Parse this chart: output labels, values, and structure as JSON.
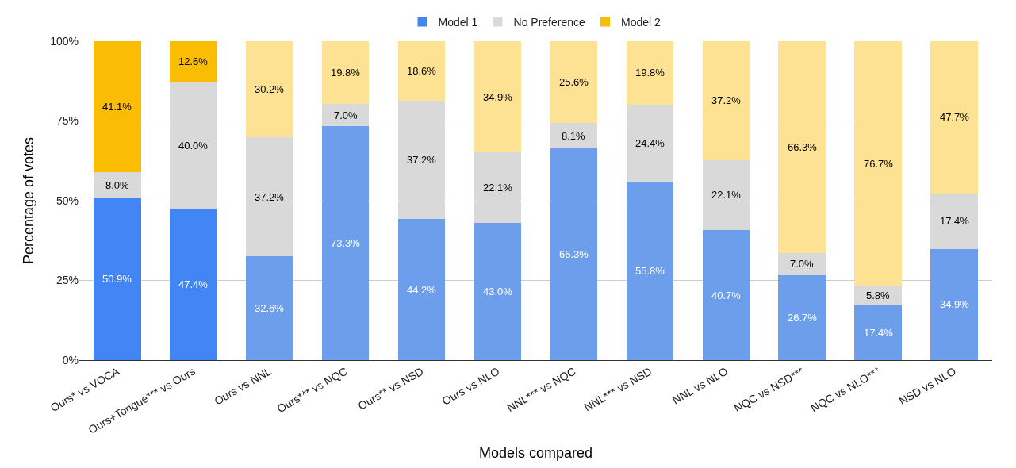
{
  "chart_data": {
    "type": "bar",
    "stacked": true,
    "xlabel": "Models compared",
    "ylabel": "Percentage of votes",
    "categories": [
      "Ours* vs VOCA",
      "Ours+Tongue*** vs Ours",
      "Ours vs NNL",
      "Ours*** vs NQC",
      "Ours** vs NSD",
      "Ours vs NLO",
      "NNL*** vs NQC",
      "NNL*** vs NSD",
      "NNL vs NLO",
      "NQC vs NSD***",
      "NQC vs NLO***",
      "NSD vs NLO"
    ],
    "series": [
      {
        "name": "Model 1",
        "colors": [
          "#4285f4",
          "#4285f4",
          "#6d9eeb",
          "#6d9eeb",
          "#6d9eeb",
          "#6d9eeb",
          "#6d9eeb",
          "#6d9eeb",
          "#6d9eeb",
          "#6d9eeb",
          "#6d9eeb",
          "#6d9eeb"
        ],
        "values": [
          50.9,
          47.4,
          32.6,
          73.3,
          44.2,
          43.0,
          66.3,
          55.8,
          40.7,
          26.7,
          17.4,
          34.9
        ],
        "value_labels": [
          "50.9%",
          "47.4%",
          "32.6%",
          "73.3%",
          "44.2%",
          "43.0%",
          "66.3%",
          "55.8%",
          "40.7%",
          "26.7%",
          "17.4%",
          "34.9%"
        ]
      },
      {
        "name": "No Preference",
        "colors": [
          "#d9d9d9",
          "#d9d9d9",
          "#d9d9d9",
          "#d9d9d9",
          "#d9d9d9",
          "#d9d9d9",
          "#d9d9d9",
          "#d9d9d9",
          "#d9d9d9",
          "#d9d9d9",
          "#d9d9d9",
          "#d9d9d9"
        ],
        "values": [
          8.0,
          40.0,
          37.2,
          7.0,
          37.2,
          22.1,
          8.1,
          24.4,
          22.1,
          7.0,
          5.8,
          17.4
        ],
        "value_labels": [
          "8.0%",
          "40.0%",
          "37.2%",
          "7.0%",
          "37.2%",
          "22.1%",
          "8.1%",
          "24.4%",
          "22.1%",
          "7.0%",
          "5.8%",
          "17.4%"
        ]
      },
      {
        "name": "Model 2",
        "colors": [
          "#fbbc04",
          "#fbbc04",
          "#fde293",
          "#fde293",
          "#fde293",
          "#fde293",
          "#fde293",
          "#fde293",
          "#fde293",
          "#fde293",
          "#fde293",
          "#fde293"
        ],
        "values": [
          41.1,
          12.6,
          30.2,
          19.8,
          18.6,
          34.9,
          25.6,
          19.8,
          37.2,
          66.3,
          76.7,
          47.7
        ],
        "value_labels": [
          "41.1%",
          "12.6%",
          "30.2%",
          "19.8%",
          "18.6%",
          "34.9%",
          "25.6%",
          "19.8%",
          "37.2%",
          "66.3%",
          "76.7%",
          "47.7%"
        ]
      }
    ],
    "ylim": [
      0,
      100
    ],
    "yticks": [
      {
        "value": 0,
        "label": "0%"
      },
      {
        "value": 25,
        "label": "25%"
      },
      {
        "value": 50,
        "label": "50%"
      },
      {
        "value": 75,
        "label": "75%"
      },
      {
        "value": 100,
        "label": "100%"
      }
    ],
    "grid": "y",
    "legend": "top"
  }
}
